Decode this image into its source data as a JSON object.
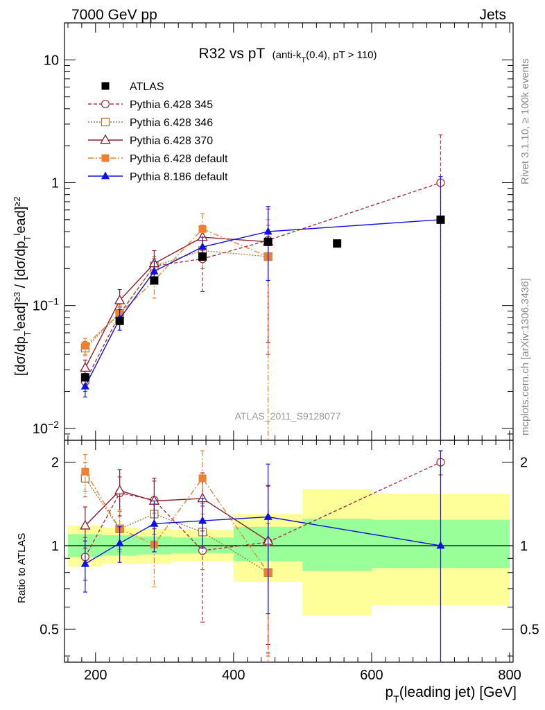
{
  "header": {
    "left": "7000 GeV pp",
    "right": "Jets"
  },
  "side_labels": {
    "top": "Rivet 3.1.10, ≥ 100k events",
    "bottom": "mcplots.cern.ch [arXiv:1306.3436]"
  },
  "watermark": "ATLAS_2011_S9128077",
  "chart_data": [
    {
      "type": "scatter",
      "panel": "main",
      "title_main": "R32 vs pT",
      "title_sub": "(anti-k_T(0.4), pT > 110)",
      "ylabel": "[dσ/dp_T^lead]^≥3 / [dσ/dp_T^lead]^≥2",
      "yscale": "log",
      "ylim": [
        0.008,
        20
      ],
      "xlim": [
        155,
        805
      ],
      "ytick_labels": [
        "10^-2",
        "10^-1",
        "1",
        "10"
      ],
      "legend_position": "top-left",
      "x": [
        185,
        235,
        285,
        355,
        450,
        550,
        700
      ],
      "series": [
        {
          "name": "ATLAS",
          "style": "data",
          "color": "#000000",
          "values": [
            0.026,
            0.075,
            0.16,
            0.25,
            0.33,
            0.32,
            0.5
          ]
        },
        {
          "name": "Pythia 6.428 345",
          "style": "circle-dashed",
          "color": "#b03040",
          "values": [
            0.024,
            0.085,
            0.21,
            0.24,
            0.34,
            null,
            1.0
          ],
          "errors": [
            0.004,
            0.012,
            0.03,
            0.11,
            0.3,
            null,
            1.45
          ]
        },
        {
          "name": "Pythia 6.428 346",
          "style": "square-dotted",
          "color": "#a07c3c",
          "values": [
            0.045,
            0.086,
            0.21,
            0.28,
            0.25,
            null,
            null
          ],
          "errors": [
            0.006,
            0.012,
            0.04,
            0.08,
            0.2,
            null,
            null
          ]
        },
        {
          "name": "Pythia 6.428 370",
          "style": "triangle-solid",
          "color": "#8b1a2a",
          "values": [
            0.031,
            0.11,
            0.22,
            0.36,
            0.33,
            null,
            null
          ],
          "errors": [
            0.005,
            0.025,
            0.06,
            0.09,
            0.28,
            null,
            null
          ]
        },
        {
          "name": "Pythia 6.428 default",
          "style": "filled-square-dashdot",
          "color": "#f08030",
          "values": [
            0.047,
            0.086,
            0.16,
            0.42,
            0.25,
            null,
            null
          ],
          "errors": [
            0.007,
            0.015,
            0.045,
            0.14,
            0.25,
            null,
            null
          ]
        },
        {
          "name": "Pythia 8.186 default",
          "style": "filled-triangle-solid",
          "color": "#1010e0",
          "values": [
            0.022,
            0.078,
            0.19,
            0.3,
            0.4,
            null,
            0.5
          ],
          "errors": [
            0.004,
            0.015,
            0.04,
            0.06,
            0.24,
            null,
            0.62
          ]
        }
      ]
    },
    {
      "type": "scatter",
      "panel": "ratio",
      "ylabel": "Ratio to ATLAS",
      "yscale": "log",
      "ylim": [
        0.38,
        2.4
      ],
      "xlim": [
        155,
        805
      ],
      "yticks": [
        0.5,
        1,
        2
      ],
      "ytick_labels": [
        "0.5",
        "1",
        "2"
      ],
      "xticks": [
        200,
        400,
        600,
        800
      ],
      "xtick_labels": [
        "200",
        "400",
        "600",
        "800"
      ],
      "xlabel": "p_T(leading jet) [GeV]",
      "bands": [
        {
          "x0": 160,
          "x1": 210,
          "green": [
            0.91,
            1.1
          ],
          "yellow": [
            0.84,
            1.18
          ]
        },
        {
          "x0": 210,
          "x1": 260,
          "green": [
            0.92,
            1.09
          ],
          "yellow": [
            0.86,
            1.16
          ]
        },
        {
          "x0": 260,
          "x1": 310,
          "green": [
            0.93,
            1.08
          ],
          "yellow": [
            0.86,
            1.15
          ]
        },
        {
          "x0": 310,
          "x1": 400,
          "green": [
            0.94,
            1.07
          ],
          "yellow": [
            0.88,
            1.14
          ]
        },
        {
          "x0": 400,
          "x1": 500,
          "green": [
            0.88,
            1.17
          ],
          "yellow": [
            0.74,
            1.3
          ]
        },
        {
          "x0": 500,
          "x1": 600,
          "green": [
            0.81,
            1.25
          ],
          "yellow": [
            0.56,
            1.6
          ]
        },
        {
          "x0": 600,
          "x1": 800,
          "green": [
            0.83,
            1.24
          ],
          "yellow": [
            0.61,
            1.54
          ]
        }
      ],
      "x": [
        185,
        235,
        285,
        355,
        450,
        550,
        700
      ],
      "series": [
        {
          "name": "Pythia 6.428 345",
          "style": "circle-dashed",
          "color": "#b03040",
          "values": [
            0.91,
            1.55,
            1.46,
            0.96,
            1.03,
            null,
            2.0
          ],
          "errors": [
            0.16,
            0.22,
            0.25,
            0.43,
            0.62,
            null,
            0.2
          ]
        },
        {
          "name": "Pythia 6.428 346",
          "style": "square-dotted",
          "color": "#a07c3c",
          "values": [
            1.75,
            1.15,
            1.3,
            1.12,
            0.8,
            null,
            null
          ],
          "errors": [
            0.25,
            0.18,
            0.2,
            0.3,
            0.4,
            null,
            null
          ]
        },
        {
          "name": "Pythia 6.428 370",
          "style": "triangle-solid",
          "color": "#8b1a2a",
          "values": [
            1.18,
            1.58,
            1.45,
            1.48,
            1.04,
            null,
            null
          ],
          "errors": [
            0.2,
            0.3,
            0.3,
            0.35,
            0.6,
            null,
            null
          ]
        },
        {
          "name": "Pythia 6.428 default",
          "style": "filled-square-dashdot",
          "color": "#f08030",
          "values": [
            1.85,
            1.15,
            1.01,
            1.75,
            0.8,
            null,
            null
          ],
          "errors": [
            0.28,
            0.2,
            0.3,
            0.45,
            0.45,
            null,
            null
          ]
        },
        {
          "name": "Pythia 8.186 default",
          "style": "filled-triangle-solid",
          "color": "#1010e0",
          "values": [
            0.86,
            1.02,
            1.2,
            1.23,
            1.27,
            null,
            1.0
          ],
          "errors": [
            0.18,
            0.15,
            0.25,
            0.25,
            0.7,
            null,
            1.2
          ]
        }
      ]
    }
  ]
}
